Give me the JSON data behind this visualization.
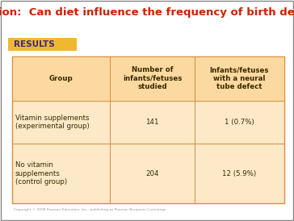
{
  "title": "Question:  Can diet influence the frequency of birth defects?",
  "title_color": "#cc2200",
  "title_fontsize": 9.5,
  "results_label": "RESULTS",
  "results_bg": "#f0b830",
  "results_text_color": "#3a2a80",
  "results_fontsize": 7.5,
  "table_bg": "#fde9c8",
  "table_header_bg": "#fcd9a0",
  "table_border_color": "#d4964a",
  "col_headers": [
    "Group",
    "Number of\ninfants/fetuses\nstudied",
    "Infants/fetuses\nwith a neural\ntube defect"
  ],
  "rows": [
    [
      "Vitamin supplements\n(experimental group)",
      "141",
      "1 (0.7%)"
    ],
    [
      "No vitamin\nsupplements\n(control group)",
      "204",
      "12 (5.9%)"
    ]
  ],
  "cell_text_color": "#3a2a00",
  "header_text_color": "#3a2a00",
  "copyright_text": "Copyright © 2008 Pearson Education, Inc., publishing as Pearson Benjamin Cummings",
  "bg_color": "#ffffff",
  "outer_border_color": "#888888"
}
